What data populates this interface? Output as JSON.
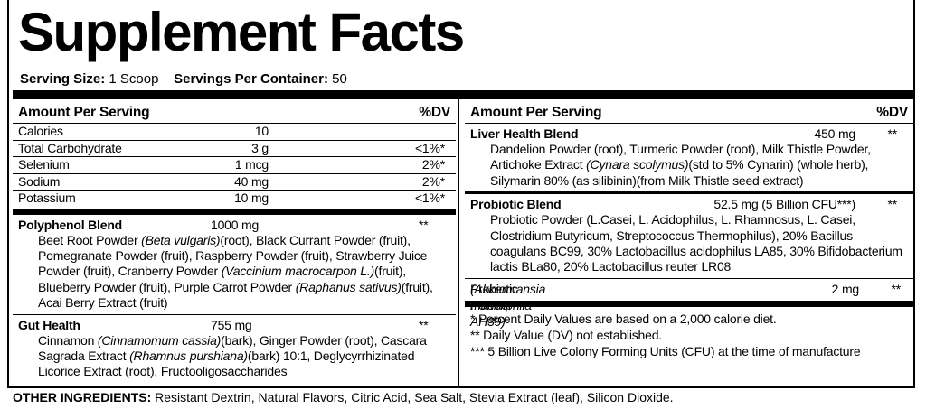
{
  "title": "Supplement Facts",
  "serving": {
    "size_label": "Serving Size:",
    "size": "1 Scoop",
    "per_container_label": "Servings Per Container:",
    "per_container": "50"
  },
  "left": {
    "header": {
      "amount": "Amount Per Serving",
      "dv": "%DV"
    },
    "nutrients": [
      {
        "name": "Calories",
        "amount": "10"
      },
      {
        "name": "Total Carbohydrate",
        "amount": "3 g",
        "dv": "<1%*"
      },
      {
        "name": "Selenium",
        "amount": "1 mcg",
        "dv": "2%*"
      },
      {
        "name": "Sodium",
        "amount": "40 mg",
        "dv": "2%*"
      },
      {
        "name": "Potassium",
        "amount": "10 mg",
        "dv": "<1%*"
      }
    ],
    "blends": [
      {
        "name": "Polyphenol Blend",
        "amount": "1000 mg",
        "dv": "**",
        "ingredients": [
          "Beet Root Powder ",
          {
            "text": "(Beta vulgaris)",
            "italic": true
          },
          "(root), Black Currant Powder (fruit), Pomegranate Powder (fruit), Raspberry Powder (fruit), Strawberry Juice Powder (fruit), Cranberry Powder ",
          {
            "text": "(Vaccinium macrocarpon L.)",
            "italic": true
          },
          "(fruit), Blueberry Powder (fruit), Purple Carrot Powder ",
          {
            "text": "(Raphanus sativus)",
            "italic": true
          },
          "(fruit), Acai Berry Extract (fruit)"
        ]
      },
      {
        "name": "Gut Health",
        "amount": "755 mg",
        "dv": "**",
        "ingredients": [
          "Cinnamon ",
          {
            "text": "(Cinnamomum cassia)",
            "italic": true
          },
          "(bark), Ginger Powder (root), Cascara Sagrada Extract ",
          {
            "text": "(Rhamnus purshiana)",
            "italic": true
          },
          "(bark) 10:1, Deglycyrrhizinated Licorice Extract (root), Fructooligosaccharides"
        ]
      }
    ]
  },
  "right": {
    "header": {
      "amount": "Amount Per Serving",
      "dv": "%DV"
    },
    "blends": [
      {
        "name": "Liver Health Blend",
        "amount": "450 mg",
        "dv": "**",
        "ingredients": [
          "Dandelion Powder (root), Turmeric Powder (root), Milk Thistle Powder, Artichoke Extract ",
          {
            "text": "(Cynara scolymus)",
            "italic": true
          },
          "(std to 5% Cynarin) (whole herb), Silymarin 80% (as silibinin)(from Milk Thistle seed extract)"
        ]
      },
      {
        "name": "Probiotic Blend",
        "amount": "52.5 mg (5 Billion CFU***)",
        "dv": "**",
        "ingredients": [
          "Probiotic Powder (L.Casei, L. Acidophilus, L. Rhamnosus, L. Casei, Clostridium Butyricum, Streptococcus Thermophilus), 20% Bacillus coagulans BC99, 30% Lactobacillus acidophilus LA85, 30% Bifidobacterium lactis BLa80, 20% Lactobacillus reuter LR08"
        ]
      }
    ],
    "single": {
      "name": [
        "Probiotic Powder ",
        {
          "text": "(Akkermansia muciniphila AH39)",
          "italic": true
        }
      ],
      "amount": "2 mg",
      "dv": "**"
    },
    "footnotes": [
      "* Percent Daily Values are based on a 2,000 calorie diet.",
      "** Daily Value (DV) not established.",
      "*** 5 Billion Live Colony Forming Units (CFU) at the time of manufacture"
    ]
  },
  "other_ingredients": {
    "label": "OTHER INGREDIENTS:",
    "text": "Resistant Dextrin, Natural Flavors, Citric Acid, Sea Salt, Stevia Extract (leaf), Silicon Dioxide."
  }
}
